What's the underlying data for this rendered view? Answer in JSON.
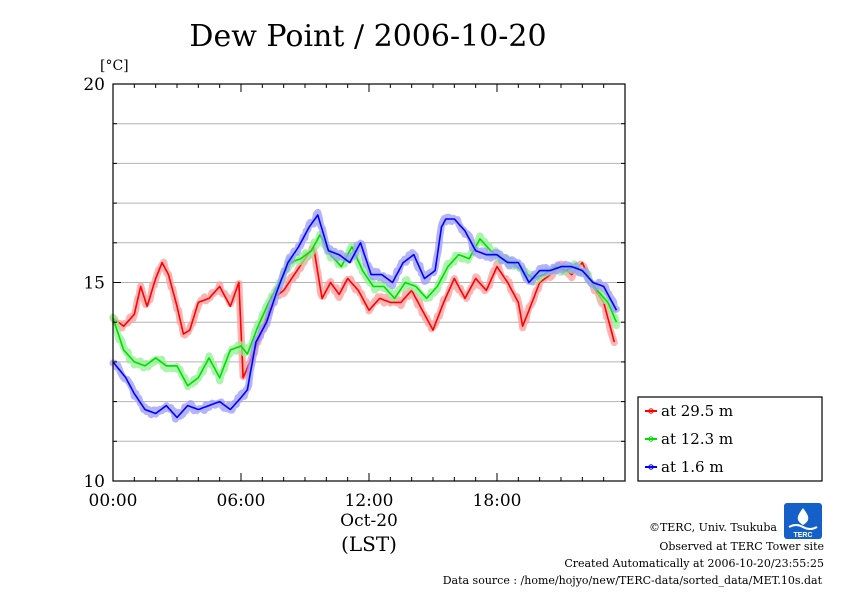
{
  "chart_data": {
    "type": "line",
    "title": "Dew Point / 2006-10-20",
    "ylabel": "[°C]",
    "ylim": [
      10,
      20
    ],
    "yticks": [
      "10",
      "15",
      "20"
    ],
    "xlim": [
      0,
      24
    ],
    "xticks": [
      "00:00",
      "06:00",
      "12:00",
      "18:00"
    ],
    "xsub": "Oct-20",
    "xlabel": "(LST)",
    "grid": "horizontal, every 1 °C",
    "legend_position": "right",
    "series": [
      {
        "name": "at 29.5 m",
        "color": "#ff0000",
        "x": [
          0,
          0.5,
          1,
          1.3,
          1.6,
          2,
          2.3,
          2.6,
          3,
          3.3,
          3.6,
          4,
          4.5,
          5,
          5.5,
          5.9,
          6.1,
          6.5,
          7,
          7.5,
          8,
          8.5,
          9,
          9.4,
          9.8,
          10.2,
          10.6,
          11,
          11.5,
          12,
          12.5,
          13,
          13.5,
          14,
          14.5,
          15,
          15.5,
          16,
          16.5,
          17,
          17.5,
          18,
          18.5,
          19,
          19.2,
          19.5,
          20,
          20.5,
          21,
          21.5,
          22,
          22.5,
          23,
          23.5
        ],
        "y": [
          14.1,
          13.9,
          14.2,
          14.9,
          14.4,
          15.1,
          15.5,
          15.2,
          14.4,
          13.7,
          13.8,
          14.5,
          14.6,
          14.9,
          14.4,
          15.0,
          12.6,
          13.1,
          13.8,
          14.6,
          14.8,
          15.2,
          15.6,
          15.9,
          14.6,
          15.0,
          14.7,
          15.1,
          14.8,
          14.3,
          14.6,
          14.5,
          14.5,
          14.8,
          14.3,
          13.8,
          14.5,
          15.1,
          14.6,
          15.1,
          14.8,
          15.4,
          15.0,
          14.5,
          13.9,
          14.3,
          15.0,
          15.2,
          15.4,
          15.2,
          15.5,
          14.9,
          14.5,
          13.5
        ]
      },
      {
        "name": "at 12.3 m",
        "color": "#00dd00",
        "x": [
          0,
          0.5,
          1,
          1.5,
          2,
          2.5,
          3,
          3.5,
          4,
          4.5,
          5,
          5.5,
          6,
          6.3,
          6.8,
          7.3,
          7.8,
          8.3,
          8.8,
          9.3,
          9.7,
          10.2,
          10.7,
          11.2,
          11.7,
          12.2,
          12.7,
          13.2,
          13.7,
          14.2,
          14.7,
          15.2,
          15.7,
          16.2,
          16.7,
          17.2,
          17.7,
          18.2,
          18.7,
          19.2,
          19.7,
          20.2,
          20.7,
          21.2,
          21.7,
          22.2,
          22.7,
          23.2,
          23.6
        ],
        "y": [
          14.1,
          13.3,
          13.0,
          12.9,
          13.1,
          12.9,
          12.9,
          12.4,
          12.6,
          13.1,
          12.6,
          13.3,
          13.4,
          13.2,
          13.9,
          14.5,
          15.0,
          15.5,
          15.6,
          15.8,
          16.2,
          15.7,
          15.4,
          15.9,
          15.3,
          14.9,
          14.9,
          14.6,
          15.0,
          14.9,
          14.6,
          14.9,
          15.4,
          15.7,
          15.6,
          16.1,
          15.8,
          15.6,
          15.5,
          15.3,
          15.1,
          15.2,
          15.4,
          15.3,
          15.4,
          15.2,
          14.8,
          14.5,
          14.0
        ]
      },
      {
        "name": "at 1.6 m",
        "color": "#0000ff",
        "x": [
          0,
          0.3,
          0.6,
          1,
          1.5,
          2,
          2.5,
          3,
          3.5,
          4,
          4.5,
          5,
          5.5,
          6,
          6.3,
          6.7,
          7.2,
          7.7,
          8.2,
          8.7,
          9.2,
          9.6,
          10.1,
          10.6,
          11.1,
          11.6,
          12.1,
          12.6,
          13.1,
          13.6,
          14.1,
          14.6,
          15.1,
          15.4,
          15.6,
          16.0,
          16.5,
          17,
          17.5,
          18,
          18.5,
          19,
          19.5,
          20,
          20.5,
          21,
          21.5,
          22,
          22.5,
          23,
          23.6
        ],
        "y": [
          13.0,
          12.8,
          12.6,
          12.2,
          11.8,
          11.7,
          11.9,
          11.6,
          11.9,
          11.8,
          11.9,
          12.0,
          11.8,
          12.1,
          12.3,
          13.5,
          14.0,
          14.8,
          15.5,
          15.9,
          16.4,
          16.7,
          15.8,
          15.7,
          15.5,
          16.0,
          15.2,
          15.2,
          15.0,
          15.5,
          15.7,
          15.1,
          15.3,
          16.4,
          16.6,
          16.6,
          16.3,
          15.8,
          15.7,
          15.7,
          15.5,
          15.5,
          15.0,
          15.3,
          15.3,
          15.4,
          15.4,
          15.3,
          15.0,
          14.9,
          14.3
        ]
      }
    ]
  },
  "credits": {
    "copyright": "©TERC, Univ. Tsukuba",
    "site": "Observed at TERC Tower site",
    "created": "Created Automatically at 2006-10-20/23:55:25",
    "source": "Data source : /home/hojyo/new/TERC-data/sorted_data/MET.10s.dat",
    "logo_text": "TERC"
  }
}
